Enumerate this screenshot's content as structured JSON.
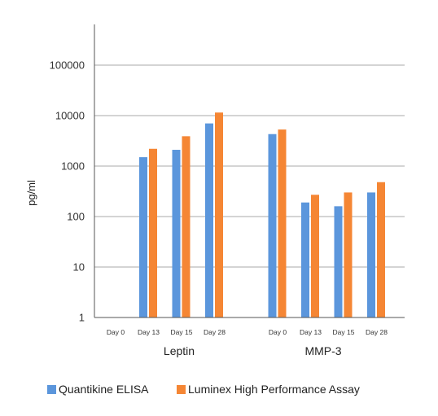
{
  "chart_data": {
    "type": "bar",
    "title": "",
    "xlabel": "",
    "ylabel": "pg/ml",
    "yscale": "log",
    "ylim": [
      1,
      100000
    ],
    "yticks": [
      1,
      10,
      100,
      1000,
      10000,
      100000
    ],
    "ytick_labels": [
      "1",
      "10",
      "100",
      "1000",
      "10000",
      "100000"
    ],
    "grid": true,
    "legend_position": "bottom",
    "groups": [
      {
        "name": "Leptin",
        "categories": [
          "Day 0",
          "Day 13",
          "Day 15",
          "Day 28"
        ],
        "series": [
          {
            "name": "Quantikine ELISA",
            "values": [
              null,
              1500,
              2100,
              7000
            ]
          },
          {
            "name": "Luminex High Performance Assay",
            "values": [
              null,
              2200,
              3900,
              11500
            ]
          }
        ]
      },
      {
        "name": "MMP-3",
        "categories": [
          "Day 0",
          "Day 13",
          "Day 15",
          "Day 28"
        ],
        "series": [
          {
            "name": "Quantikine ELISA",
            "values": [
              4300,
              190,
              160,
              300
            ]
          },
          {
            "name": "Luminex High Performance Assay",
            "values": [
              5300,
              270,
              300,
              480
            ]
          }
        ]
      }
    ],
    "legend": [
      {
        "name": "Quantikine ELISA",
        "color": "#5b96dc"
      },
      {
        "name": "Luminex High Performance Assay",
        "color": "#f58634"
      }
    ]
  }
}
